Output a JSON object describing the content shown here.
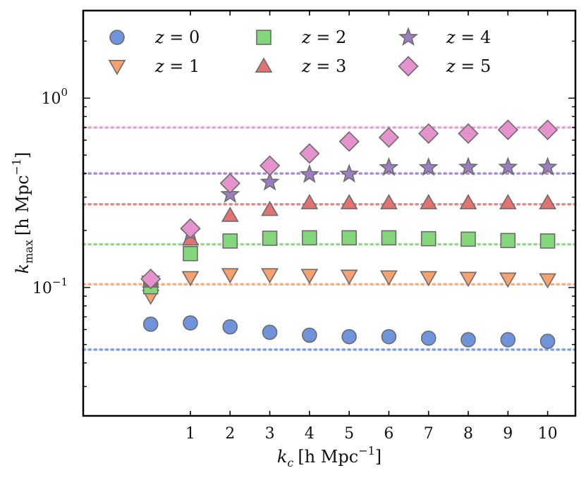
{
  "chart_data": {
    "type": "scatter",
    "title": "",
    "xlabel": "k_c [h Mpc^-1]",
    "xlabel_main": "k",
    "xlabel_sub": "c",
    "xlabel_units": "[h Mpc",
    "xlabel_exp": "−1",
    "xlabel_close": "]",
    "ylabel": "k_max [h Mpc^-1]",
    "ylabel_main": "k",
    "ylabel_sub": "max",
    "ylabel_units": "[h Mpc",
    "ylabel_exp": "−1",
    "ylabel_close": "]",
    "yscale": "log",
    "xlim": [
      -1.7,
      10.7
    ],
    "ylim": [
      0.021,
      2.9
    ],
    "x_ticks": [
      1,
      2,
      3,
      4,
      5,
      6,
      7,
      8,
      9,
      10
    ],
    "x_tick_labels": [
      "1",
      "2",
      "3",
      "4",
      "5",
      "6",
      "7",
      "8",
      "9",
      "10"
    ],
    "y_ticks": [
      0.1,
      1.0
    ],
    "y_tick_bases": [
      "10",
      "10"
    ],
    "y_tick_exps": [
      "−1",
      "0"
    ],
    "x": [
      0,
      1,
      2,
      3,
      4,
      5,
      6,
      7,
      8,
      9,
      10
    ],
    "legend_position": "top-left",
    "series": [
      {
        "name": "z = 0",
        "var": "z",
        "eq": "=",
        "num": "0",
        "marker": "circle",
        "color": "#6f94dc",
        "values": [
          0.064,
          0.065,
          0.062,
          0.058,
          0.056,
          0.055,
          0.055,
          0.054,
          0.053,
          0.053,
          0.052
        ],
        "reference": 0.047
      },
      {
        "name": "z = 1",
        "var": "z",
        "eq": "=",
        "num": "1",
        "marker": "triangle-down",
        "color": "#f7a16e",
        "values": [
          0.09,
          0.113,
          0.117,
          0.117,
          0.116,
          0.115,
          0.114,
          0.113,
          0.112,
          0.111,
          0.11
        ],
        "reference": 0.104
      },
      {
        "name": "z = 2",
        "var": "z",
        "eq": "=",
        "num": "2",
        "marker": "square",
        "color": "#84d67a",
        "values": [
          0.101,
          0.151,
          0.176,
          0.182,
          0.183,
          0.183,
          0.183,
          0.181,
          0.18,
          0.177,
          0.176
        ],
        "reference": 0.169
      },
      {
        "name": "z = 3",
        "var": "z",
        "eq": "=",
        "num": "3",
        "marker": "triangle-up",
        "color": "#e37272",
        "values": [
          0.108,
          0.18,
          0.24,
          0.258,
          0.28,
          0.28,
          0.28,
          0.28,
          0.28,
          0.28,
          0.28
        ],
        "reference": 0.275
      },
      {
        "name": "z = 4",
        "var": "z",
        "eq": "=",
        "num": "4",
        "marker": "star",
        "color": "#9b7fc0",
        "values": [
          0.111,
          0.195,
          0.31,
          0.36,
          0.395,
          0.397,
          0.43,
          0.43,
          0.432,
          0.432,
          0.432
        ],
        "reference": 0.4
      },
      {
        "name": "z = 5",
        "var": "z",
        "eq": "=",
        "num": "5",
        "marker": "diamond",
        "color": "#e692cc",
        "values": [
          0.111,
          0.205,
          0.355,
          0.44,
          0.51,
          0.59,
          0.62,
          0.65,
          0.65,
          0.68,
          0.68
        ],
        "reference": 0.7
      }
    ]
  }
}
